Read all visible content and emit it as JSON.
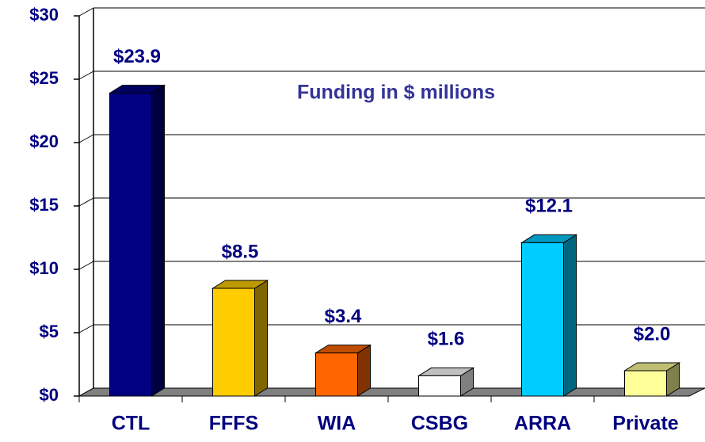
{
  "chart_data": {
    "type": "bar3d",
    "title": "Funding in $ millions",
    "categories": [
      "CTL",
      "FFFS",
      "WIA",
      "CSBG",
      "ARRA",
      "Private"
    ],
    "values": [
      23.9,
      8.5,
      3.4,
      1.6,
      12.1,
      2.0
    ],
    "value_labels": [
      "$23.9",
      "$8.5",
      "$3.4",
      "$1.6",
      "$12.1",
      "$2.0"
    ],
    "colors": [
      "#000080",
      "#ffcc00",
      "#ff6600",
      "#ffffff",
      "#00ccff",
      "#ffff99"
    ],
    "ylim": [
      0,
      30
    ],
    "yticks": [
      {
        "value": 0,
        "label": "$0"
      },
      {
        "value": 5,
        "label": "$5"
      },
      {
        "value": 10,
        "label": "$10"
      },
      {
        "value": 15,
        "label": "$15"
      },
      {
        "value": 20,
        "label": "$20"
      },
      {
        "value": 25,
        "label": "$25"
      },
      {
        "value": 30,
        "label": "$30"
      }
    ],
    "grid": true
  }
}
